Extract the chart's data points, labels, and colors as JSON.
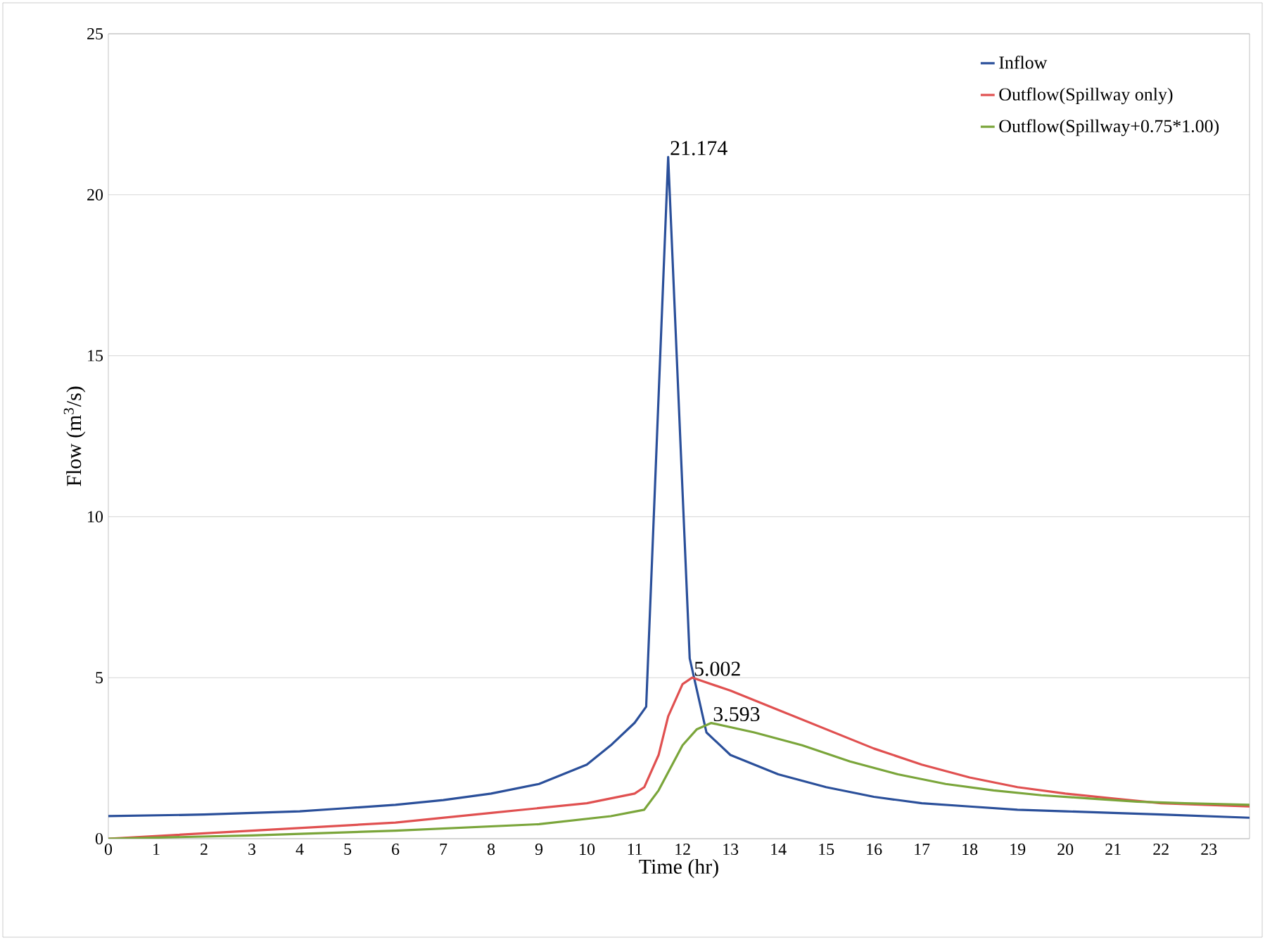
{
  "chart_data": {
    "type": "line",
    "xlabel": "Time (hr)",
    "ylabel": "Flow (m$^{3}$/s)",
    "xlim": [
      0,
      23.85
    ],
    "xticks": [
      0,
      1,
      2,
      3,
      4,
      5,
      6,
      7,
      8,
      9,
      10,
      11,
      12,
      13,
      14,
      15,
      16,
      17,
      18,
      19,
      20,
      21,
      22,
      23
    ],
    "ylim": [
      0,
      25
    ],
    "yticks": [
      0,
      5,
      10,
      15,
      20,
      25
    ],
    "grid": "y",
    "legend": "top right",
    "marker": "none",
    "line_style": "solid",
    "series": [
      {
        "name": "Inflow",
        "color": "#2a4f9a",
        "x": [
          0,
          2,
          4,
          5,
          6,
          7,
          8,
          9,
          10,
          10.5,
          11,
          11.24,
          11.7,
          12.15,
          12.5,
          13,
          14,
          15,
          16,
          17,
          18,
          19,
          20,
          21,
          22,
          23.85
        ],
        "values": [
          0.7,
          0.75,
          0.85,
          0.95,
          1.05,
          1.2,
          1.4,
          1.7,
          2.3,
          2.9,
          3.6,
          4.1,
          21.174,
          5.6,
          3.3,
          2.6,
          2.0,
          1.6,
          1.3,
          1.1,
          1.0,
          0.9,
          0.85,
          0.8,
          0.75,
          0.65
        ]
      },
      {
        "name": "Outflow(Spillway only)",
        "color": "#e05050",
        "x": [
          0,
          3,
          6,
          8,
          10,
          11,
          11.2,
          11.5,
          11.7,
          12,
          12.2,
          13,
          14,
          15,
          16,
          17,
          18,
          19,
          20,
          21,
          22,
          23.85
        ],
        "values": [
          0,
          0.25,
          0.5,
          0.8,
          1.1,
          1.4,
          1.6,
          2.6,
          3.8,
          4.8,
          5.002,
          4.6,
          4.0,
          3.4,
          2.8,
          2.3,
          1.9,
          1.6,
          1.4,
          1.25,
          1.1,
          1.0
        ]
      },
      {
        "name": "Outflow(Spillway+0.75*1.00)",
        "color": "#7aa53a",
        "x": [
          0,
          3,
          6,
          9,
          10.5,
          11.2,
          11.5,
          12,
          12.3,
          12.6,
          13.5,
          14.5,
          15.5,
          16.5,
          17.5,
          18.5,
          19.5,
          20.5,
          21.5,
          22.5,
          23.85
        ],
        "values": [
          0,
          0.1,
          0.25,
          0.45,
          0.7,
          0.9,
          1.5,
          2.9,
          3.4,
          3.593,
          3.3,
          2.9,
          2.4,
          2.0,
          1.7,
          1.5,
          1.35,
          1.25,
          1.15,
          1.1,
          1.05
        ]
      }
    ],
    "annotations": [
      {
        "text": "21.174",
        "x": 11.7,
        "y": 21.174
      },
      {
        "text": "5.002",
        "x": 12.2,
        "y": 5.002
      },
      {
        "text": "3.593",
        "x": 12.6,
        "y": 3.593
      }
    ]
  }
}
